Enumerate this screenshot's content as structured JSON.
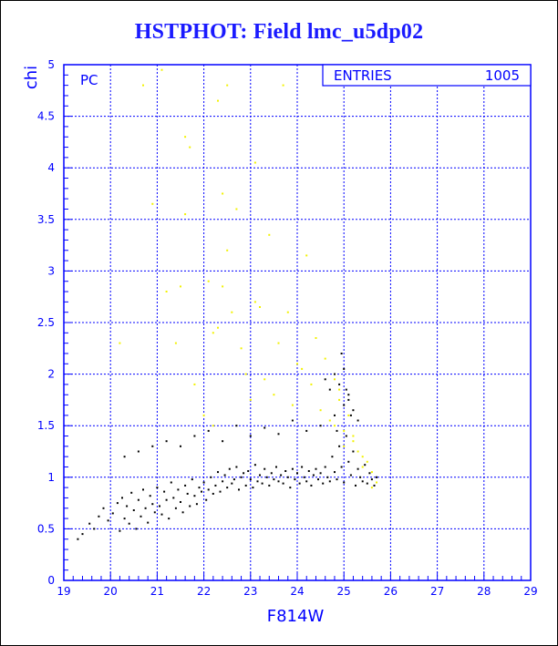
{
  "window": {
    "title": "HSTPHOT: Field lmc_u5dp02"
  },
  "colors": {
    "axis": "#0000ff",
    "grid": "#0000ff",
    "title": "#1a1aff",
    "points_black": "#000000",
    "points_yellow": "#f2f200"
  },
  "chart_data": {
    "type": "scatter",
    "title": "HSTPHOT: Field lmc_u5dp02",
    "xlabel": "F814W",
    "ylabel": "chi",
    "xlim": [
      19,
      29
    ],
    "ylim": [
      0,
      5
    ],
    "xticks": [
      "19",
      "20",
      "21",
      "22",
      "23",
      "24",
      "25",
      "26",
      "27",
      "28",
      "29"
    ],
    "yticks": [
      "0",
      "0.5",
      "1",
      "1.5",
      "2",
      "2.5",
      "3",
      "3.5",
      "4",
      "4.5",
      "5"
    ],
    "grid": true,
    "annotation": "PC",
    "stats_box": {
      "label": "ENTRIES",
      "value": "1005",
      "placement": "top-right"
    },
    "series": [
      {
        "color": "black",
        "x": [
          19.3,
          19.4,
          19.55,
          19.65,
          19.75,
          19.85,
          19.95,
          20.05,
          20.15,
          20.2,
          20.25,
          20.3,
          20.35,
          20.4,
          20.45,
          20.5,
          20.55,
          20.6,
          20.65,
          20.7,
          20.75,
          20.8,
          20.85,
          20.9,
          20.95,
          21.0,
          21.05,
          21.1,
          21.15,
          21.2,
          21.25,
          21.3,
          21.35,
          21.4,
          21.45,
          21.5,
          21.55,
          21.6,
          21.65,
          21.7,
          21.75,
          21.8,
          21.85,
          21.9,
          21.95,
          22.0,
          22.05,
          22.1,
          22.15,
          22.2,
          22.25,
          22.3,
          22.35,
          22.4,
          22.45,
          22.5,
          22.55,
          22.6,
          22.65,
          22.7,
          22.75,
          22.8,
          22.85,
          22.9,
          22.95,
          23.0,
          23.05,
          23.1,
          23.15,
          23.2,
          23.25,
          23.3,
          23.35,
          23.4,
          23.45,
          23.5,
          23.55,
          23.6,
          23.65,
          23.7,
          23.75,
          23.8,
          23.85,
          23.9,
          23.95,
          24.0,
          24.05,
          24.1,
          24.15,
          24.2,
          24.25,
          24.3,
          24.35,
          24.4,
          24.45,
          24.5,
          24.55,
          24.6,
          24.65,
          24.7,
          24.75,
          24.8,
          24.85,
          24.9,
          24.95,
          25.0,
          25.05,
          25.1,
          25.15,
          25.2,
          25.25,
          25.3,
          25.35,
          25.4,
          25.45,
          25.5,
          25.55,
          25.6,
          25.65,
          25.7,
          20.3,
          20.6,
          20.9,
          21.2,
          21.5,
          21.8,
          22.1,
          22.4,
          22.7,
          23.0,
          23.3,
          23.6,
          23.9,
          24.2,
          24.5,
          24.8,
          25.0,
          25.1,
          25.2,
          25.3,
          24.9,
          25.0,
          25.1,
          24.7,
          24.6,
          24.8,
          24.95,
          25.05,
          25.15,
          24.85
        ],
        "y": [
          0.4,
          0.45,
          0.55,
          0.5,
          0.62,
          0.7,
          0.58,
          0.65,
          0.75,
          0.48,
          0.8,
          0.6,
          0.72,
          0.55,
          0.85,
          0.68,
          0.5,
          0.78,
          0.62,
          0.88,
          0.7,
          0.56,
          0.82,
          0.74,
          0.66,
          0.9,
          0.72,
          0.64,
          0.86,
          0.78,
          0.6,
          0.95,
          0.8,
          0.7,
          0.88,
          0.76,
          0.66,
          0.92,
          0.84,
          0.72,
          0.98,
          0.82,
          0.74,
          0.9,
          0.86,
          0.95,
          0.78,
          0.88,
          1.0,
          0.84,
          0.92,
          1.05,
          0.86,
          0.96,
          1.02,
          0.9,
          1.08,
          0.94,
          0.98,
          1.1,
          0.88,
          1.0,
          1.04,
          0.92,
          1.06,
          0.98,
          0.9,
          1.12,
          0.96,
          1.02,
          0.94,
          1.08,
          1.0,
          0.92,
          1.04,
          0.98,
          1.1,
          0.96,
          1.02,
          0.94,
          1.06,
          1.0,
          0.9,
          1.08,
          0.98,
          1.04,
          0.94,
          1.1,
          1.0,
          0.96,
          1.06,
          0.92,
          1.02,
          1.08,
          0.98,
          1.04,
          0.94,
          1.1,
          1.0,
          0.96,
          1.2,
          1.05,
          0.98,
          1.3,
          1.1,
          0.95,
          1.4,
          1.15,
          1.02,
          1.25,
          0.92,
          1.08,
          1.0,
          0.96,
          1.12,
          0.94,
          1.04,
          0.98,
          0.92,
          1.0,
          1.2,
          1.25,
          1.3,
          1.35,
          1.3,
          1.4,
          1.45,
          1.35,
          1.5,
          1.4,
          1.48,
          1.42,
          1.55,
          1.45,
          1.5,
          1.6,
          1.7,
          1.8,
          1.65,
          1.55,
          1.9,
          2.05,
          1.75,
          1.85,
          1.95,
          2.0,
          2.2,
          1.85,
          1.6,
          1.45
        ]
      },
      {
        "color": "yellow",
        "x": [
          20.2,
          20.7,
          20.9,
          21.1,
          21.2,
          21.4,
          21.5,
          21.6,
          21.7,
          21.8,
          22.0,
          22.1,
          22.2,
          22.3,
          22.4,
          22.5,
          22.6,
          22.7,
          22.8,
          22.9,
          23.0,
          23.1,
          23.2,
          23.3,
          23.4,
          23.5,
          23.7,
          23.8,
          23.9,
          24.0,
          24.2,
          24.3,
          24.4,
          24.5,
          24.6,
          24.7,
          24.8,
          24.9,
          25.0,
          25.1,
          25.2,
          25.3,
          25.4,
          25.5,
          25.6,
          25.7,
          22.5,
          22.4,
          23.1,
          22.3,
          21.6,
          22.2,
          23.6,
          24.1,
          24.9,
          25.2,
          25.0,
          24.8,
          25.4,
          25.6
        ],
        "y": [
          2.3,
          4.8,
          3.65,
          4.95,
          2.8,
          2.3,
          2.85,
          4.3,
          4.2,
          1.9,
          1.6,
          2.9,
          2.4,
          4.65,
          3.75,
          4.8,
          2.6,
          3.6,
          2.25,
          2.0,
          1.75,
          4.05,
          2.65,
          1.95,
          3.35,
          1.8,
          4.8,
          2.6,
          1.7,
          2.1,
          3.15,
          1.9,
          2.35,
          1.65,
          2.15,
          1.55,
          1.95,
          1.75,
          1.45,
          1.6,
          1.35,
          1.25,
          1.2,
          1.15,
          1.05,
          0.95,
          3.2,
          2.85,
          2.7,
          2.45,
          3.55,
          1.5,
          2.3,
          2.05,
          1.85,
          1.4,
          1.3,
          1.5,
          1.1,
          0.9
        ]
      }
    ]
  }
}
